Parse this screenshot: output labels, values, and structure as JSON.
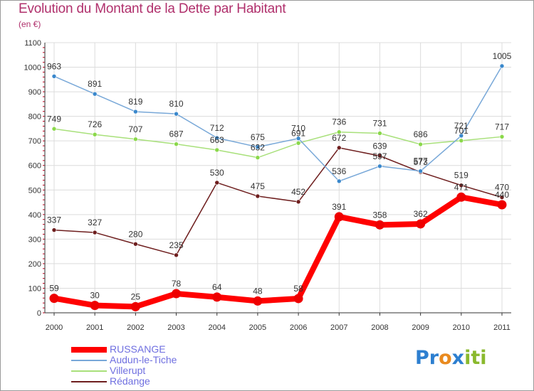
{
  "header": {
    "title": "Evolution du Montant de la Dette par Habitant",
    "subtitle": "(en €)"
  },
  "logo": {
    "text": "Proxiti"
  },
  "colors": {
    "title": "#b0306c",
    "legend_text": "#6f6fe0",
    "grid": "#dcdcdc",
    "axis": "#333333",
    "tick_marks": "#c0001e"
  },
  "chart_data": {
    "type": "line",
    "title": "Evolution du Montant de la Dette par Habitant",
    "subtitle": "(en €)",
    "xlabel": "",
    "ylabel": "",
    "x": [
      "2000",
      "2001",
      "2002",
      "2003",
      "2004",
      "2005",
      "2006",
      "2007",
      "2008",
      "2009",
      "2010",
      "2011"
    ],
    "ylim": [
      0,
      1100
    ],
    "yticks": [
      0,
      100,
      200,
      300,
      400,
      500,
      600,
      700,
      800,
      900,
      1000,
      1100
    ],
    "grid": true,
    "legend_position": "bottom-left",
    "series": [
      {
        "name": "RUSSANGE",
        "color": "#ff0000",
        "width": 8,
        "marker": "#ee0000",
        "values": [
          59,
          30,
          25,
          78,
          64,
          48,
          58,
          391,
          358,
          362,
          471,
          440
        ]
      },
      {
        "name": "Audun-le-Tiche",
        "color": "#78a8d8",
        "width": 1.5,
        "marker": "#3a88cc",
        "values": [
          963,
          891,
          819,
          810,
          712,
          675,
          710,
          536,
          597,
          577,
          721,
          1005
        ]
      },
      {
        "name": "Villerupt",
        "color": "#a8e07a",
        "width": 1.5,
        "marker": "#8ad84a",
        "values": [
          749,
          726,
          707,
          687,
          663,
          632,
          691,
          736,
          731,
          686,
          701,
          717
        ]
      },
      {
        "name": "Rédange",
        "color": "#6e1e1e",
        "width": 1.5,
        "marker": "#6e1e1e",
        "values": [
          337,
          327,
          280,
          235,
          530,
          475,
          452,
          672,
          639,
          573,
          519,
          470
        ]
      }
    ]
  }
}
